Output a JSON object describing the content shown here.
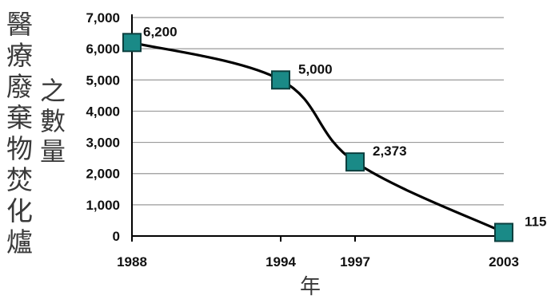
{
  "chart_data": {
    "type": "line",
    "categories": [
      "1988",
      "1994",
      "1997",
      "2003"
    ],
    "series": [
      {
        "values": [
          6200,
          5000,
          2373,
          115
        ]
      }
    ],
    "data_labels": [
      "6,200",
      "5,000",
      "2,373",
      "115"
    ],
    "y_ticks": [
      "0",
      "1,000",
      "2,000",
      "3,000",
      "4,000",
      "5,000",
      "6,000",
      "7,000"
    ],
    "ylim": [
      0,
      7000
    ],
    "ylabel_main": "醫療廢棄物焚化爐",
    "ylabel_sub": "之數量",
    "xlabel": "年",
    "grid": true,
    "marker_color": "#1a8a87",
    "line_color": "#000000"
  }
}
